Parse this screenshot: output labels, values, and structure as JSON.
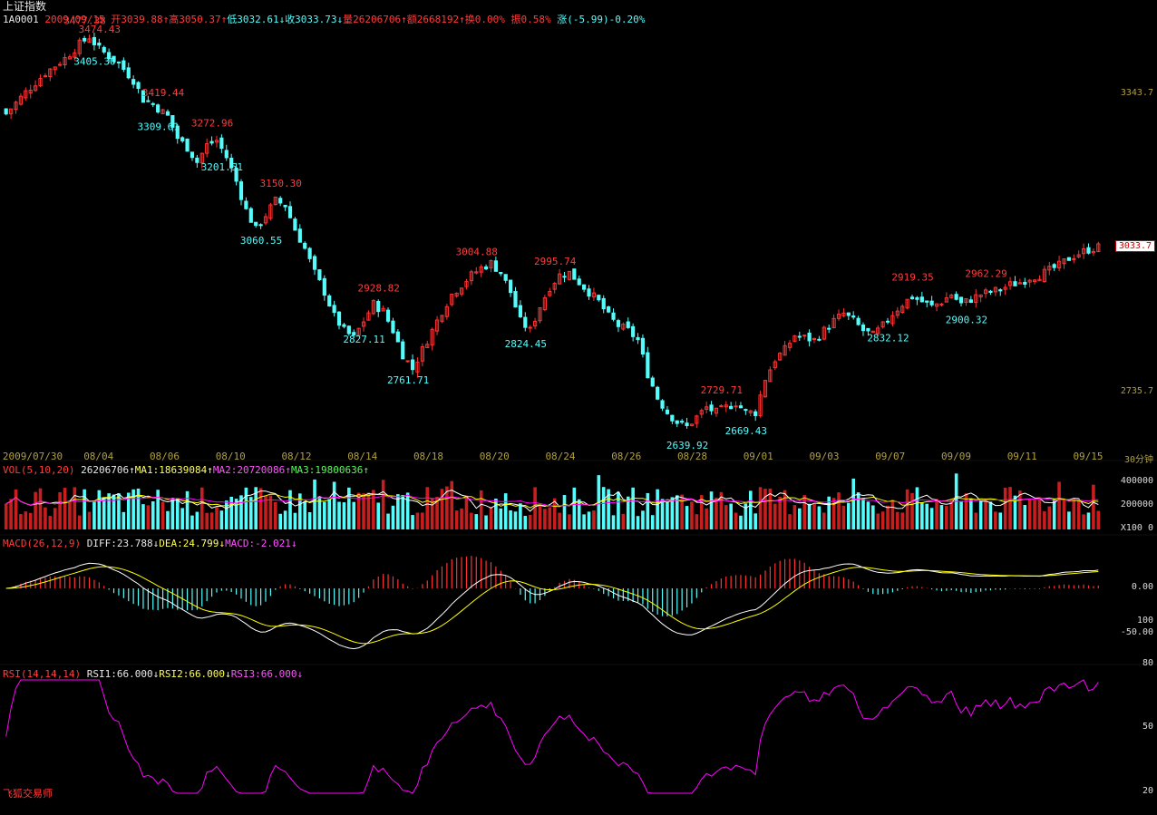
{
  "header": {
    "title": "上证指数",
    "code": "1A0001",
    "date": "2009/09/15",
    "open": "开3039.88",
    "high": "高3050.37",
    "low": "低3032.61",
    "close": "收3033.73",
    "volume": "量26206706",
    "amount": "额2668192",
    "turnover": "换0.00%",
    "amplitude": "振0.58%",
    "change": "涨(-5.99)-0.20%"
  },
  "price_axis": {
    "ticks": [
      "3343.7",
      "2735.7"
    ],
    "current": "3033.7"
  },
  "date_axis": {
    "labels": [
      "2009/07/30",
      "08/04",
      "08/06",
      "08/10",
      "08/12",
      "08/14",
      "08/18",
      "08/20",
      "08/24",
      "08/26",
      "08/28",
      "09/01",
      "09/03",
      "09/07",
      "09/09",
      "09/11",
      "09/15"
    ],
    "unit": "30分钟"
  },
  "vol_panel": {
    "name": "VOL(5,10,20)",
    "value": "26206706",
    "ma1": "MA1:18639084",
    "ma2": "MA2:20720086",
    "ma3": "MA3:19800636",
    "ticks": [
      "400000",
      "200000",
      "X100 0"
    ]
  },
  "macd_panel": {
    "name": "MACD(26,12,9)",
    "diff": "DIFF:23.788",
    "dea": "DEA:24.799",
    "macd": "MACD:-2.021",
    "ticks": [
      "0.00",
      "100",
      "-50.00"
    ]
  },
  "rsi_panel": {
    "name": "RSI(14,14,14)",
    "rsi1": "RSI1:66.000",
    "rsi2": "RSI2:66.000",
    "rsi3": "RSI3:66.000",
    "ticks": [
      "80",
      "50",
      "20"
    ]
  },
  "watermark": "飞狐交易师",
  "colors": {
    "up": "#ff3232",
    "down": "#54fcfc",
    "ma1": "#ffffff",
    "ma2": "#ffff00",
    "ma3": "#ff00ff",
    "grid": "#2a2a2a"
  },
  "chart_data": {
    "type": "candlestick",
    "annotations": [
      {
        "label": "3477.38",
        "kind": "high"
      },
      {
        "label": "3474.43",
        "kind": "high"
      },
      {
        "label": "3405.30",
        "kind": "low"
      },
      {
        "label": "3419.44",
        "kind": "high"
      },
      {
        "label": "3309.61",
        "kind": "low"
      },
      {
        "label": "3272.96",
        "kind": "high"
      },
      {
        "label": "3201.51",
        "kind": "low"
      },
      {
        "label": "3150.30",
        "kind": "high"
      },
      {
        "label": "3060.55",
        "kind": "low"
      },
      {
        "label": "2928.82",
        "kind": "high"
      },
      {
        "label": "2827.11",
        "kind": "low"
      },
      {
        "label": "2761.71",
        "kind": "low"
      },
      {
        "label": "3004.88",
        "kind": "high"
      },
      {
        "label": "2824.45",
        "kind": "low"
      },
      {
        "label": "2995.74",
        "kind": "high"
      },
      {
        "label": "2729.71",
        "kind": "high"
      },
      {
        "label": "2639.92",
        "kind": "low"
      },
      {
        "label": "2669.43",
        "kind": "low"
      },
      {
        "label": "2919.35",
        "kind": "high"
      },
      {
        "label": "2832.12",
        "kind": "low"
      },
      {
        "label": "2962.29",
        "kind": "high"
      },
      {
        "label": "2900.32",
        "kind": "low"
      }
    ],
    "close_path": [
      [
        0,
        3310
      ],
      [
        4,
        3355
      ],
      [
        8,
        3395
      ],
      [
        12,
        3425
      ],
      [
        15,
        3455
      ],
      [
        17,
        3470
      ],
      [
        19,
        3445
      ],
      [
        21,
        3430
      ],
      [
        23,
        3415
      ],
      [
        26,
        3380
      ],
      [
        28,
        3340
      ],
      [
        30,
        3330
      ],
      [
        33,
        3305
      ],
      [
        35,
        3260
      ],
      [
        37,
        3240
      ],
      [
        39,
        3210
      ],
      [
        41,
        3245
      ],
      [
        43,
        3255
      ],
      [
        45,
        3220
      ],
      [
        47,
        3170
      ],
      [
        49,
        3110
      ],
      [
        51,
        3070
      ],
      [
        53,
        3100
      ],
      [
        55,
        3130
      ],
      [
        57,
        3120
      ],
      [
        59,
        3070
      ],
      [
        61,
        3030
      ],
      [
        63,
        2980
      ],
      [
        65,
        2940
      ],
      [
        67,
        2890
      ],
      [
        69,
        2860
      ],
      [
        71,
        2845
      ],
      [
        73,
        2880
      ],
      [
        75,
        2915
      ],
      [
        77,
        2900
      ],
      [
        79,
        2860
      ],
      [
        81,
        2810
      ],
      [
        83,
        2780
      ],
      [
        85,
        2820
      ],
      [
        87,
        2860
      ],
      [
        89,
        2900
      ],
      [
        91,
        2935
      ],
      [
        93,
        2955
      ],
      [
        95,
        2975
      ],
      [
        97,
        2990
      ],
      [
        99,
        3000
      ],
      [
        101,
        2980
      ],
      [
        103,
        2940
      ],
      [
        105,
        2880
      ],
      [
        107,
        2860
      ],
      [
        109,
        2910
      ],
      [
        111,
        2950
      ],
      [
        113,
        2975
      ],
      [
        115,
        2980
      ],
      [
        117,
        2960
      ],
      [
        119,
        2940
      ],
      [
        121,
        2920
      ],
      [
        123,
        2890
      ],
      [
        125,
        2870
      ],
      [
        127,
        2860
      ],
      [
        129,
        2840
      ],
      [
        131,
        2770
      ],
      [
        133,
        2720
      ],
      [
        135,
        2690
      ],
      [
        137,
        2670
      ],
      [
        139,
        2660
      ],
      [
        141,
        2680
      ],
      [
        143,
        2700
      ],
      [
        145,
        2690
      ],
      [
        147,
        2700
      ],
      [
        149,
        2710
      ],
      [
        151,
        2690
      ],
      [
        153,
        2690
      ],
      [
        155,
        2760
      ],
      [
        157,
        2800
      ],
      [
        159,
        2820
      ],
      [
        161,
        2850
      ],
      [
        163,
        2845
      ],
      [
        165,
        2840
      ],
      [
        167,
        2860
      ],
      [
        169,
        2880
      ],
      [
        171,
        2895
      ],
      [
        173,
        2880
      ],
      [
        175,
        2860
      ],
      [
        177,
        2850
      ],
      [
        179,
        2870
      ],
      [
        181,
        2895
      ],
      [
        183,
        2915
      ],
      [
        185,
        2930
      ],
      [
        187,
        2920
      ],
      [
        189,
        2910
      ],
      [
        191,
        2920
      ],
      [
        193,
        2935
      ],
      [
        195,
        2915
      ],
      [
        197,
        2925
      ],
      [
        199,
        2935
      ],
      [
        201,
        2940
      ],
      [
        203,
        2945
      ],
      [
        205,
        2955
      ],
      [
        207,
        2960
      ],
      [
        209,
        2970
      ],
      [
        211,
        2975
      ],
      [
        213,
        2985
      ],
      [
        215,
        2995
      ],
      [
        217,
        3010
      ],
      [
        219,
        3020
      ],
      [
        221,
        3028
      ],
      [
        223,
        3033
      ]
    ]
  }
}
